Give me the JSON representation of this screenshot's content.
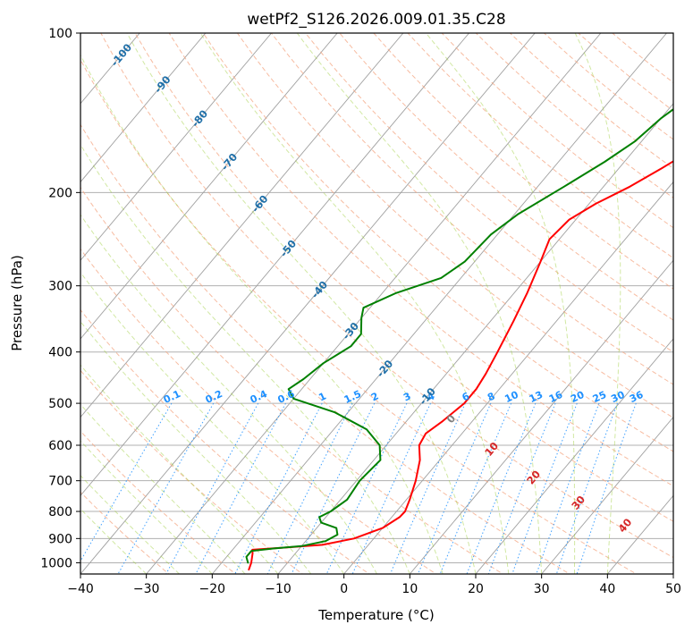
{
  "chart_data": {
    "type": "line",
    "title": "wetPf2_S126.2026.009.01.35.C28",
    "xlabel": "Temperature (°C)",
    "ylabel": "Pressure (hPa)",
    "xlim": [
      -40,
      50
    ],
    "ylim": [
      1050,
      100
    ],
    "x_ticks": [
      -40,
      -30,
      -20,
      -10,
      0,
      10,
      20,
      30,
      40,
      50
    ],
    "x_tick_labels": [
      "−40",
      "−30",
      "−20",
      "−10",
      "0",
      "10",
      "20",
      "30",
      "40",
      "50"
    ],
    "y_ticks": [
      100,
      200,
      300,
      400,
      500,
      600,
      700,
      800,
      900,
      1000
    ],
    "y_tick_labels": [
      "100",
      "200",
      "300",
      "400",
      "500",
      "600",
      "700",
      "800",
      "900",
      "1000"
    ],
    "series": [
      {
        "name": "temperature",
        "color": "#ff0000",
        "points": [
          [
            -15.0,
            1030
          ],
          [
            -15.5,
            1000
          ],
          [
            -16.5,
            960
          ],
          [
            -17.0,
            945
          ],
          [
            -12.0,
            935
          ],
          [
            -7.0,
            925
          ],
          [
            -3.0,
            900
          ],
          [
            0.0,
            860
          ],
          [
            1.2,
            820
          ],
          [
            1.3,
            800
          ],
          [
            0.5,
            760
          ],
          [
            -1.0,
            700
          ],
          [
            -3.0,
            640
          ],
          [
            -5.0,
            600
          ],
          [
            -5.5,
            570
          ],
          [
            -4.5,
            540
          ],
          [
            -3.5,
            500
          ],
          [
            -3.5,
            470
          ],
          [
            -4.0,
            440
          ],
          [
            -5.0,
            400
          ],
          [
            -6.5,
            350
          ],
          [
            -8.0,
            310
          ],
          [
            -10.0,
            270
          ],
          [
            -11.5,
            245
          ],
          [
            -11.0,
            225
          ],
          [
            -9.0,
            210
          ],
          [
            -6.0,
            195
          ],
          [
            -3.5,
            180
          ],
          [
            -1.0,
            165
          ],
          [
            1.0,
            150
          ],
          [
            3.5,
            138
          ],
          [
            6.5,
            127
          ],
          [
            9.0,
            117
          ],
          [
            11.0,
            108
          ],
          [
            13.0,
            100
          ]
        ]
      },
      {
        "name": "dewpoint",
        "color": "#008000",
        "points": [
          [
            -16.0,
            1000
          ],
          [
            -17.0,
            975
          ],
          [
            -17.0,
            950
          ],
          [
            -14.0,
            940
          ],
          [
            -10.0,
            930
          ],
          [
            -7.0,
            910
          ],
          [
            -6.0,
            885
          ],
          [
            -7.0,
            860
          ],
          [
            -10.0,
            840
          ],
          [
            -11.0,
            820
          ],
          [
            -10.0,
            800
          ],
          [
            -9.0,
            760
          ],
          [
            -9.5,
            700
          ],
          [
            -9.0,
            640
          ],
          [
            -11.0,
            600
          ],
          [
            -15.0,
            560
          ],
          [
            -22.0,
            520
          ],
          [
            -30.0,
            490
          ],
          [
            -32.0,
            470
          ],
          [
            -31.0,
            450
          ],
          [
            -30.0,
            420
          ],
          [
            -28.0,
            390
          ],
          [
            -28.0,
            370
          ],
          [
            -30.0,
            345
          ],
          [
            -31.0,
            330
          ],
          [
            -28.0,
            310
          ],
          [
            -23.0,
            290
          ],
          [
            -21.5,
            270
          ],
          [
            -21.0,
            240
          ],
          [
            -19.5,
            220
          ],
          [
            -16.0,
            195
          ],
          [
            -13.0,
            175
          ],
          [
            -11.0,
            160
          ],
          [
            -10.0,
            145
          ],
          [
            -8.0,
            130
          ],
          [
            -5.0,
            115
          ],
          [
            -2.0,
            105
          ],
          [
            0.0,
            100
          ]
        ]
      }
    ],
    "reference_lines": {
      "isotherms": "solid gray, every 10 °C, skewed",
      "dry_adiabats_color": "#f4a582",
      "moist_adiabats_color": "#9acd32",
      "mixing_ratio_color": "#1e90ff"
    },
    "mixing_ratio_labels": [
      "0.1",
      "0.2",
      "0.4",
      "0.6",
      "1",
      "1.5",
      "2",
      "3",
      "4",
      "6",
      "8",
      "10",
      "13",
      "16",
      "20",
      "25",
      "30",
      "36"
    ],
    "mixing_ratio_values": [
      0.1,
      0.2,
      0.4,
      0.6,
      1,
      1.5,
      2,
      3,
      4,
      6,
      8,
      10,
      13,
      16,
      20,
      25,
      30,
      36
    ],
    "upper_isotherm_labels": [
      "-100",
      "-90",
      "-80",
      "-70",
      "-60",
      "-50",
      "-40",
      "-30",
      "-20",
      "-10"
    ],
    "upper_isotherm_values": [
      -100,
      -90,
      -80,
      -70,
      -60,
      -50,
      -40,
      -30,
      -20,
      -10
    ],
    "lower_isotherm_labels": [
      "0",
      "10",
      "20",
      "30",
      "40"
    ],
    "lower_isotherm_values": [
      0,
      10,
      20,
      30,
      40
    ],
    "colors": {
      "isotherm_label": "#1f6fa8",
      "zero_label": "#808080",
      "warm_label": "#d62728",
      "mixing_label": "#1e90ff",
      "grid": "#b0b0b0"
    }
  }
}
